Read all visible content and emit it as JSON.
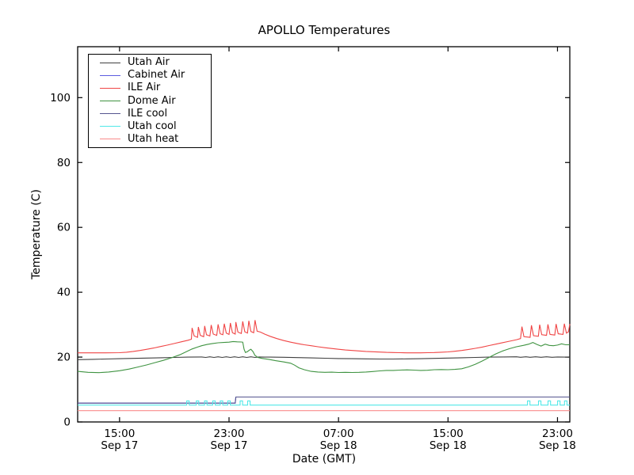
{
  "figure": {
    "title": "APOLLO Temperatures",
    "xlabel": "Date (GMT)",
    "ylabel": "Temperature (C)"
  },
  "chart_data": {
    "type": "line",
    "title": "APOLLO Temperatures",
    "xlabel": "Date (GMT)",
    "ylabel": "Temperature (C)",
    "grid": false,
    "legend_position": "upper-left",
    "x_unit": "hours after Sep 17 12:00 GMT",
    "xlim_hours": [
      -0.06,
      35.9
    ],
    "ylim": [
      0,
      115.7
    ],
    "y_ticks": [
      0,
      20,
      40,
      60,
      80,
      100
    ],
    "x_ticks": [
      {
        "hour": 3,
        "time": "15:00",
        "date": "Sep 17"
      },
      {
        "hour": 11,
        "time": "23:00",
        "date": "Sep 17"
      },
      {
        "hour": 19,
        "time": "07:00",
        "date": "Sep 18"
      },
      {
        "hour": 27,
        "time": "15:00",
        "date": "Sep 18"
      },
      {
        "hour": 35,
        "time": "23:00",
        "date": "Sep 18"
      }
    ],
    "series": [
      {
        "name": "Utah Air",
        "color": "#404040",
        "points": [
          [
            -0.06,
            19.2
          ],
          [
            1,
            19.3
          ],
          [
            2,
            19.4
          ],
          [
            3,
            19.5
          ],
          [
            4,
            19.6
          ],
          [
            5,
            19.7
          ],
          [
            6,
            19.8
          ],
          [
            7,
            19.9
          ],
          [
            8,
            20.0
          ],
          [
            9,
            20.05
          ],
          [
            9.3,
            19.9
          ],
          [
            9.6,
            20.1
          ],
          [
            9.9,
            19.9
          ],
          [
            10.2,
            20.1
          ],
          [
            10.5,
            19.9
          ],
          [
            10.8,
            20.1
          ],
          [
            11.1,
            19.9
          ],
          [
            11.4,
            20.1
          ],
          [
            11.7,
            19.9
          ],
          [
            12,
            20.1
          ],
          [
            12.3,
            19.9
          ],
          [
            12.6,
            20.1
          ],
          [
            12.9,
            19.9
          ],
          [
            13.2,
            20.05
          ],
          [
            13.6,
            20.0
          ],
          [
            14,
            20.0
          ],
          [
            15,
            19.95
          ],
          [
            16,
            19.85
          ],
          [
            17,
            19.75
          ],
          [
            18,
            19.65
          ],
          [
            19,
            19.55
          ],
          [
            20,
            19.5
          ],
          [
            21,
            19.45
          ],
          [
            22,
            19.4
          ],
          [
            23,
            19.4
          ],
          [
            24,
            19.45
          ],
          [
            25,
            19.5
          ],
          [
            26,
            19.6
          ],
          [
            27,
            19.7
          ],
          [
            28,
            19.8
          ],
          [
            29,
            19.9
          ],
          [
            30,
            20.0
          ],
          [
            31,
            20.05
          ],
          [
            32,
            20.1
          ],
          [
            32.3,
            19.95
          ],
          [
            32.7,
            20.1
          ],
          [
            33,
            19.95
          ],
          [
            33.4,
            20.1
          ],
          [
            33.8,
            19.95
          ],
          [
            34.2,
            20.1
          ],
          [
            34.6,
            19.95
          ],
          [
            35,
            20.05
          ],
          [
            35.5,
            20.0
          ],
          [
            35.9,
            19.95
          ]
        ]
      },
      {
        "name": "Cabinet Air",
        "color": "#5c5ce0",
        "points": [
          [
            -0.06,
            5.8
          ],
          [
            11.45,
            5.8
          ],
          [
            11.5,
            7.7
          ],
          [
            35.9,
            7.7
          ]
        ]
      },
      {
        "name": "ILE Air",
        "color": "#f04545",
        "points": [
          [
            -0.06,
            21.3
          ],
          [
            1,
            21.3
          ],
          [
            2,
            21.3
          ],
          [
            3,
            21.35
          ],
          [
            3.5,
            21.5
          ],
          [
            4,
            21.75
          ],
          [
            4.5,
            22.05
          ],
          [
            5,
            22.4
          ],
          [
            5.5,
            22.8
          ],
          [
            6,
            23.25
          ],
          [
            6.5,
            23.7
          ],
          [
            7,
            24.2
          ],
          [
            7.5,
            24.7
          ],
          [
            8,
            25.2
          ],
          [
            8.25,
            25.5
          ],
          [
            8.3,
            29.0
          ],
          [
            8.45,
            26.5
          ],
          [
            8.7,
            26.1
          ],
          [
            8.76,
            29.3
          ],
          [
            8.9,
            26.7
          ],
          [
            9.15,
            26.3
          ],
          [
            9.22,
            29.6
          ],
          [
            9.35,
            26.9
          ],
          [
            9.6,
            26.5
          ],
          [
            9.7,
            29.9
          ],
          [
            9.85,
            27.1
          ],
          [
            10.1,
            26.7
          ],
          [
            10.2,
            30.1
          ],
          [
            10.35,
            27.2
          ],
          [
            10.55,
            26.9
          ],
          [
            10.65,
            30.3
          ],
          [
            10.8,
            27.4
          ],
          [
            11.0,
            27.0
          ],
          [
            11.1,
            30.5
          ],
          [
            11.25,
            27.5
          ],
          [
            11.45,
            27.1
          ],
          [
            11.5,
            30.8
          ],
          [
            11.65,
            27.7
          ],
          [
            11.9,
            27.3
          ],
          [
            12.0,
            31.0
          ],
          [
            12.15,
            27.8
          ],
          [
            12.35,
            27.4
          ],
          [
            12.45,
            31.2
          ],
          [
            12.6,
            27.9
          ],
          [
            12.8,
            27.5
          ],
          [
            12.9,
            31.4
          ],
          [
            13.05,
            28.0
          ],
          [
            13.3,
            27.7
          ],
          [
            13.6,
            27.1
          ],
          [
            14,
            26.4
          ],
          [
            14.5,
            25.7
          ],
          [
            15,
            25.1
          ],
          [
            15.5,
            24.6
          ],
          [
            16,
            24.2
          ],
          [
            16.5,
            23.8
          ],
          [
            17,
            23.5
          ],
          [
            17.5,
            23.2
          ],
          [
            18,
            22.9
          ],
          [
            18.5,
            22.65
          ],
          [
            19,
            22.4
          ],
          [
            19.5,
            22.2
          ],
          [
            20,
            22.05
          ],
          [
            20.5,
            21.9
          ],
          [
            21,
            21.75
          ],
          [
            21.5,
            21.65
          ],
          [
            22,
            21.55
          ],
          [
            22.5,
            21.45
          ],
          [
            23,
            21.4
          ],
          [
            23.5,
            21.35
          ],
          [
            24,
            21.3
          ],
          [
            24.5,
            21.3
          ],
          [
            25,
            21.3
          ],
          [
            25.5,
            21.35
          ],
          [
            26,
            21.4
          ],
          [
            26.5,
            21.5
          ],
          [
            27,
            21.6
          ],
          [
            27.5,
            21.8
          ],
          [
            28,
            22.05
          ],
          [
            28.5,
            22.35
          ],
          [
            29,
            22.7
          ],
          [
            29.5,
            23.1
          ],
          [
            30,
            23.55
          ],
          [
            30.5,
            24.0
          ],
          [
            31,
            24.45
          ],
          [
            31.5,
            24.9
          ],
          [
            32,
            25.35
          ],
          [
            32.3,
            25.7
          ],
          [
            32.4,
            29.4
          ],
          [
            32.55,
            26.3
          ],
          [
            33.0,
            26.1
          ],
          [
            33.1,
            29.8
          ],
          [
            33.25,
            26.6
          ],
          [
            33.6,
            26.4
          ],
          [
            33.7,
            30.0
          ],
          [
            33.85,
            26.9
          ],
          [
            34.2,
            26.7
          ],
          [
            34.3,
            30.1
          ],
          [
            34.45,
            27.0
          ],
          [
            34.8,
            26.8
          ],
          [
            34.9,
            30.2
          ],
          [
            35.05,
            27.2
          ],
          [
            35.4,
            27.0
          ],
          [
            35.5,
            30.3
          ],
          [
            35.65,
            27.4
          ],
          [
            35.8,
            27.8
          ],
          [
            35.9,
            30.2
          ]
        ]
      },
      {
        "name": "Dome Air",
        "color": "#3f9341",
        "points": [
          [
            -0.06,
            15.6
          ],
          [
            0.7,
            15.3
          ],
          [
            1.5,
            15.2
          ],
          [
            2.2,
            15.4
          ],
          [
            3,
            15.8
          ],
          [
            3.7,
            16.3
          ],
          [
            4.4,
            17.0
          ],
          [
            5,
            17.6
          ],
          [
            5.6,
            18.3
          ],
          [
            6.2,
            19.0
          ],
          [
            6.8,
            19.8
          ],
          [
            7.4,
            20.7
          ],
          [
            8,
            21.9
          ],
          [
            8.3,
            22.5
          ],
          [
            8.7,
            23.1
          ],
          [
            9,
            23.5
          ],
          [
            9.4,
            23.9
          ],
          [
            9.8,
            24.2
          ],
          [
            10.2,
            24.4
          ],
          [
            10.6,
            24.5
          ],
          [
            11,
            24.6
          ],
          [
            11.3,
            24.8
          ],
          [
            11.6,
            24.7
          ],
          [
            11.9,
            24.65
          ],
          [
            12.0,
            24.6
          ],
          [
            12.1,
            22.4
          ],
          [
            12.2,
            21.4
          ],
          [
            12.35,
            21.7
          ],
          [
            12.5,
            22.2
          ],
          [
            12.6,
            22.4
          ],
          [
            12.75,
            21.7
          ],
          [
            12.9,
            20.5
          ],
          [
            13.1,
            19.9
          ],
          [
            13.4,
            19.6
          ],
          [
            13.9,
            19.3
          ],
          [
            14.4,
            18.9
          ],
          [
            15,
            18.5
          ],
          [
            15.5,
            18.1
          ],
          [
            15.8,
            17.5
          ],
          [
            16.1,
            16.7
          ],
          [
            16.5,
            16.1
          ],
          [
            17,
            15.6
          ],
          [
            17.5,
            15.4
          ],
          [
            18,
            15.3
          ],
          [
            18.5,
            15.35
          ],
          [
            19,
            15.25
          ],
          [
            19.5,
            15.3
          ],
          [
            20,
            15.25
          ],
          [
            20.5,
            15.3
          ],
          [
            21,
            15.4
          ],
          [
            21.5,
            15.55
          ],
          [
            22,
            15.75
          ],
          [
            22.5,
            15.9
          ],
          [
            23,
            15.9
          ],
          [
            23.5,
            16.0
          ],
          [
            24,
            16.05
          ],
          [
            24.5,
            16.0
          ],
          [
            25,
            15.9
          ],
          [
            25.5,
            15.95
          ],
          [
            26,
            16.1
          ],
          [
            26.5,
            16.15
          ],
          [
            27,
            16.1
          ],
          [
            27.5,
            16.2
          ],
          [
            28,
            16.4
          ],
          [
            28.5,
            17.0
          ],
          [
            29,
            17.8
          ],
          [
            29.5,
            18.8
          ],
          [
            30,
            19.9
          ],
          [
            30.5,
            21.0
          ],
          [
            31,
            21.9
          ],
          [
            31.5,
            22.6
          ],
          [
            32,
            23.2
          ],
          [
            32.5,
            23.6
          ],
          [
            32.9,
            24.0
          ],
          [
            33.2,
            24.5
          ],
          [
            33.5,
            23.9
          ],
          [
            33.8,
            23.4
          ],
          [
            34.1,
            24.0
          ],
          [
            34.4,
            23.6
          ],
          [
            34.7,
            23.5
          ],
          [
            35,
            23.7
          ],
          [
            35.3,
            24.1
          ],
          [
            35.6,
            23.8
          ],
          [
            35.9,
            23.8
          ]
        ]
      },
      {
        "name": "ILE cool",
        "color": "#55558f",
        "points": [
          [
            -0.06,
            5.8
          ],
          [
            11.45,
            5.8
          ],
          [
            11.5,
            7.7
          ],
          [
            35.9,
            7.7
          ]
        ]
      },
      {
        "name": "Utah cool",
        "color": "#50e8e8",
        "pulse": true,
        "base": 5.2,
        "pulse_high": 6.5,
        "pulse_halfwidth": 0.09,
        "pulse_hours": [
          8.0,
          8.7,
          9.3,
          9.9,
          10.45,
          11.0,
          11.9,
          12.45,
          32.9,
          33.7,
          34.4,
          35.1,
          35.6
        ]
      },
      {
        "name": "Utah heat",
        "color": "#f98b8b",
        "points": [
          [
            -0.06,
            3.5
          ],
          [
            35.9,
            3.5
          ]
        ]
      }
    ]
  }
}
